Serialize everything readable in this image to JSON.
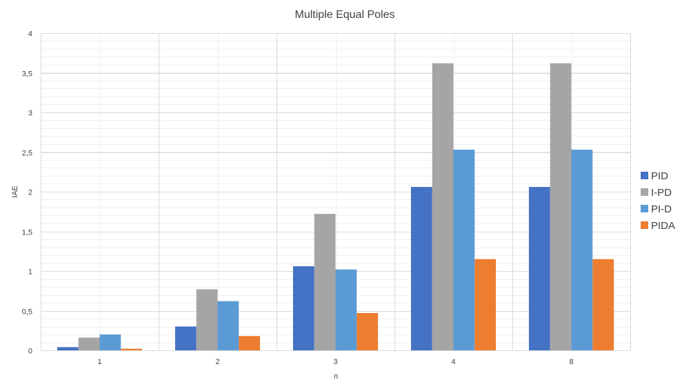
{
  "chart_data": {
    "type": "bar",
    "title": "Multiple Equal Poles",
    "xlabel": "n",
    "ylabel": "IAE",
    "categories": [
      "1",
      "2",
      "3",
      "4",
      "8"
    ],
    "ylim": [
      0,
      4
    ],
    "yticks": [
      0,
      0.5,
      1,
      1.5,
      2,
      2.5,
      3,
      3.5,
      4
    ],
    "ytick_labels": [
      "0",
      "0,5",
      "1",
      "1,5",
      "2",
      "2,5",
      "3",
      "3,5",
      "4"
    ],
    "grid": true,
    "legend_position": "right",
    "series": [
      {
        "name": "PID",
        "color": "#4472C4",
        "values": [
          0.04,
          0.3,
          1.06,
          2.06,
          2.06
        ]
      },
      {
        "name": "I-PD",
        "color": "#A5A5A5",
        "values": [
          0.16,
          0.77,
          1.72,
          3.62,
          3.62
        ]
      },
      {
        "name": "PI-D",
        "color": "#5B9BD5",
        "values": [
          0.2,
          0.62,
          1.02,
          2.53,
          2.53
        ]
      },
      {
        "name": "PIDA",
        "color": "#ED7D31",
        "values": [
          0.02,
          0.18,
          0.47,
          1.15,
          1.15
        ]
      }
    ]
  }
}
